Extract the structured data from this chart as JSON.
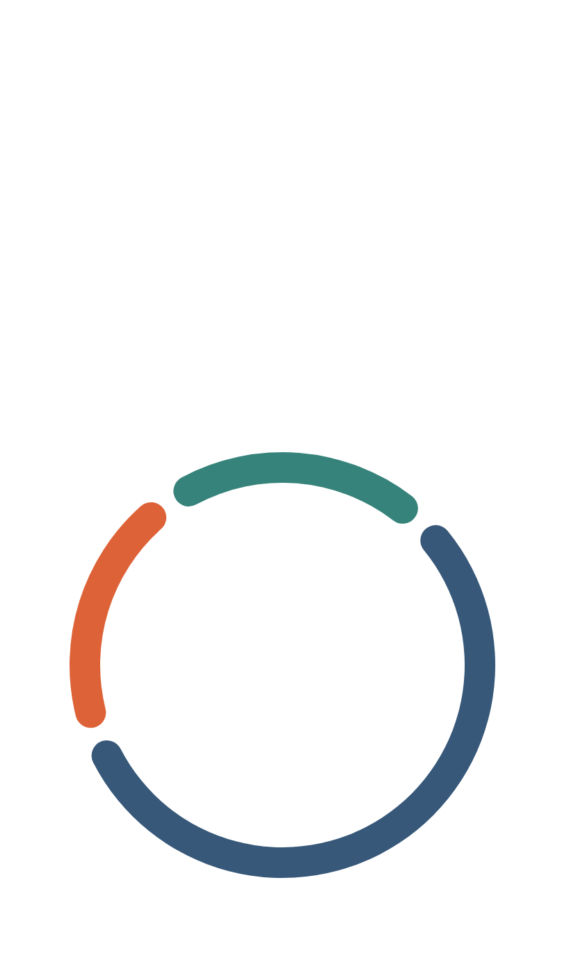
{
  "chart_data": {
    "type": "donut",
    "categories": [
      null,
      null,
      null
    ],
    "values": [
      22,
      57,
      21
    ],
    "colors": [
      "#36837b",
      "#375879",
      "#de6237"
    ]
  }
}
